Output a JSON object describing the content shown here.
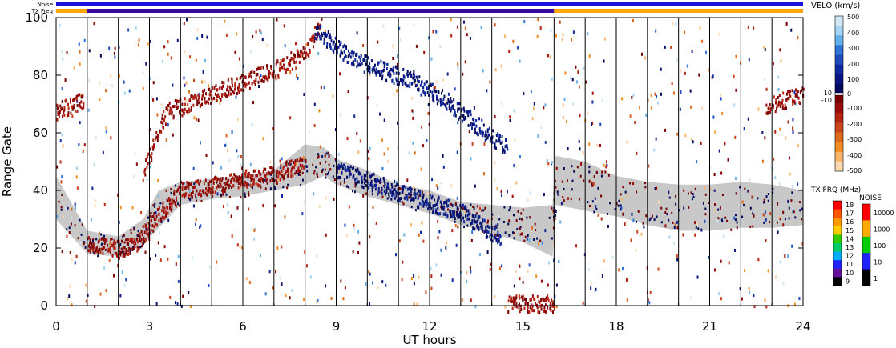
{
  "chart_data": {
    "type": "heatmap",
    "xlabel": "UT hours",
    "ylabel": "Range Gate",
    "xlim": [
      0,
      24
    ],
    "ylim": [
      0,
      100
    ],
    "x_ticks": [
      "0",
      "3",
      "6",
      "9",
      "12",
      "15",
      "18",
      "21",
      "24"
    ],
    "y_ticks": [
      "0",
      "20",
      "40",
      "60",
      "80",
      "100"
    ],
    "scan_boundaries_hours": [
      1,
      2,
      3,
      4,
      5,
      6,
      7,
      8,
      9,
      10,
      11,
      12,
      13,
      14,
      15,
      16,
      17,
      18,
      19,
      20,
      21,
      22,
      23
    ],
    "status_bars": {
      "noise_label": "Noise",
      "txfreq_label": "TX Freq",
      "noise_color": "#1a10e0",
      "txfreq_segments": [
        {
          "start": 0,
          "end": 1,
          "color": "#ffa500"
        },
        {
          "start": 1,
          "end": 16,
          "color": "#3a0aa0"
        },
        {
          "start": 16,
          "end": 24,
          "color": "#ffa500"
        }
      ]
    },
    "ground_scatter_color": "#c8c8c8",
    "ground_scatter_bands": [
      {
        "x": 0.0,
        "lo": 30,
        "hi": 45
      },
      {
        "x": 1.0,
        "lo": 18,
        "hi": 26
      },
      {
        "x": 2.0,
        "lo": 17,
        "hi": 24
      },
      {
        "x": 2.8,
        "lo": 21,
        "hi": 30
      },
      {
        "x": 3.3,
        "lo": 27,
        "hi": 40
      },
      {
        "x": 4.0,
        "lo": 35,
        "hi": 43
      },
      {
        "x": 5.0,
        "lo": 37,
        "hi": 44
      },
      {
        "x": 6.0,
        "lo": 38,
        "hi": 45
      },
      {
        "x": 7.0,
        "lo": 40,
        "hi": 47
      },
      {
        "x": 8.0,
        "lo": 42,
        "hi": 56
      },
      {
        "x": 8.6,
        "lo": 45,
        "hi": 55
      },
      {
        "x": 9.0,
        "lo": 42,
        "hi": 51
      },
      {
        "x": 10.0,
        "lo": 38,
        "hi": 47
      },
      {
        "x": 11.0,
        "lo": 35,
        "hi": 42
      },
      {
        "x": 12.0,
        "lo": 32,
        "hi": 40
      },
      {
        "x": 13.0,
        "lo": 28,
        "hi": 36
      },
      {
        "x": 14.0,
        "lo": 25,
        "hi": 35
      },
      {
        "x": 15.0,
        "lo": 22,
        "hi": 34
      },
      {
        "x": 15.95,
        "lo": 17,
        "hi": 35
      },
      {
        "x": 16.05,
        "lo": 35,
        "hi": 52
      },
      {
        "x": 17.0,
        "lo": 33,
        "hi": 50
      },
      {
        "x": 18.0,
        "lo": 31,
        "hi": 45
      },
      {
        "x": 19.0,
        "lo": 28,
        "hi": 43
      },
      {
        "x": 20.0,
        "lo": 26,
        "hi": 42
      },
      {
        "x": 21.0,
        "lo": 26,
        "hi": 42
      },
      {
        "x": 22.0,
        "lo": 27,
        "hi": 43
      },
      {
        "x": 23.0,
        "lo": 27,
        "hi": 42
      },
      {
        "x": 24.0,
        "lo": 28,
        "hi": 40
      }
    ],
    "ionospheric_traces": [
      {
        "sign": "negative",
        "points": [
          [
            1.0,
            22
          ],
          [
            2.0,
            20
          ],
          [
            2.6,
            22
          ],
          [
            3.0,
            28
          ],
          [
            3.4,
            33
          ],
          [
            4.0,
            40
          ],
          [
            5.0,
            42
          ],
          [
            6.0,
            44
          ],
          [
            7.0,
            46
          ],
          [
            8.0,
            50
          ]
        ]
      },
      {
        "sign": "negative",
        "points": [
          [
            2.8,
            45
          ],
          [
            3.2,
            60
          ],
          [
            3.6,
            68
          ],
          [
            4.2,
            70
          ],
          [
            5.0,
            74
          ],
          [
            6.0,
            78
          ],
          [
            7.0,
            82
          ],
          [
            8.0,
            88
          ],
          [
            8.5,
            98
          ]
        ]
      },
      {
        "sign": "positive",
        "points": [
          [
            8.3,
            96
          ],
          [
            8.8,
            92
          ],
          [
            9.5,
            86
          ],
          [
            10.5,
            82
          ],
          [
            11.5,
            78
          ],
          [
            12.5,
            72
          ],
          [
            13.5,
            63
          ],
          [
            14.5,
            55
          ]
        ]
      },
      {
        "sign": "positive",
        "points": [
          [
            9.0,
            48
          ],
          [
            10.0,
            44
          ],
          [
            11.0,
            40
          ],
          [
            12.0,
            36
          ],
          [
            13.0,
            33
          ],
          [
            13.8,
            27
          ],
          [
            14.3,
            24
          ]
        ]
      },
      {
        "sign": "negative",
        "points": [
          [
            0.0,
            68
          ],
          [
            0.5,
            70
          ],
          [
            0.9,
            72
          ]
        ]
      },
      {
        "sign": "negative",
        "points": [
          [
            22.8,
            70
          ],
          [
            23.5,
            72
          ],
          [
            24.0,
            74
          ]
        ]
      },
      {
        "sign": "negative",
        "points": [
          [
            14.5,
            1
          ],
          [
            15.0,
            1
          ],
          [
            15.5,
            1
          ],
          [
            16.0,
            1
          ]
        ]
      }
    ],
    "velocity_scale": {
      "title": "VELO (km/s)",
      "ticks": [
        "500",
        "400",
        "300",
        "200",
        "100",
        "0",
        "-100",
        "-200",
        "-300",
        "-400",
        "-500"
      ],
      "marker_labels": [
        "10",
        "-10"
      ],
      "colors": [
        "#cfe7f6",
        "#a6d4f3",
        "#64b0ea",
        "#2f74d6",
        "#1f4bbf",
        "#0f2aa0",
        "#0a1680",
        "#000a5c",
        "#7a0000",
        "#9a0a0a",
        "#b52410",
        "#c9441a",
        "#dc6a1a",
        "#f08c20",
        "#f8b46a",
        "#fcd9b3"
      ]
    },
    "txfreq_scale": {
      "title": "TX FRQ (MHz)",
      "ticks": [
        "18",
        "17",
        "16",
        "15",
        "14",
        "13",
        "12",
        "11",
        "10",
        "9"
      ],
      "colors": [
        "#ff0000",
        "#ff5500",
        "#ff9900",
        "#ffcc00",
        "#33cc00",
        "#00cc66",
        "#00aaff",
        "#2222ff",
        "#661199",
        "#000000"
      ]
    },
    "noise_scale": {
      "title": "NOISE",
      "ticks": [
        "10000",
        "1000",
        "100",
        "10",
        "1"
      ],
      "colors": [
        "#ff0000",
        "#ffaa00",
        "#00cc00",
        "#2222ff",
        "#000000"
      ]
    }
  }
}
